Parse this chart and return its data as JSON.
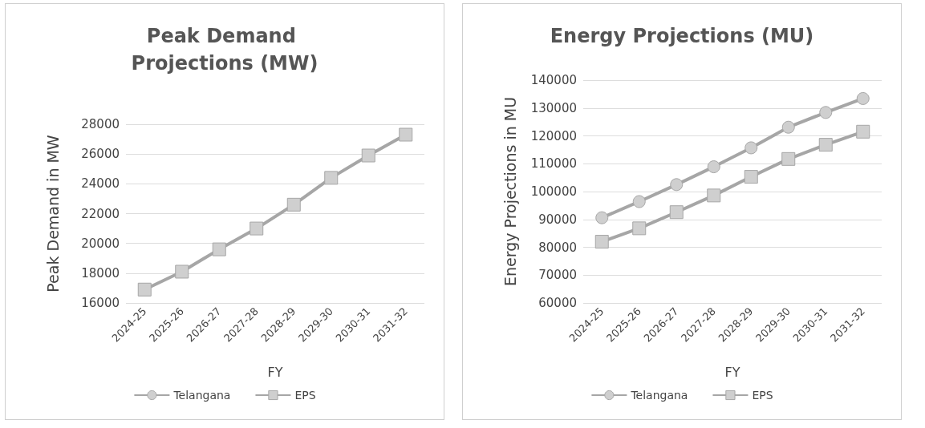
{
  "chart_data": [
    {
      "type": "line",
      "title": "Peak Demand Projections (MW)",
      "xlabel": "FY",
      "ylabel": "Peak Demand in MW",
      "categories": [
        "2024-25",
        "2025-26",
        "2026-27",
        "2027-28",
        "2028-29",
        "2029-30",
        "2030-31",
        "2031-32"
      ],
      "series": [
        {
          "name": "Telangana",
          "color": "#a6a6a6",
          "marker": "circle",
          "values": [
            null,
            null,
            null,
            null,
            null,
            null,
            null,
            null
          ]
        },
        {
          "name": "EPS",
          "color": "#a6a6a6",
          "marker": "square",
          "values": [
            16900,
            18100,
            19600,
            21000,
            22600,
            24400,
            25900,
            27300
          ]
        }
      ],
      "ylim": [
        16000,
        28000
      ],
      "yticks": [
        16000,
        18000,
        20000,
        22000,
        24000,
        26000,
        28000
      ],
      "grid": "y",
      "legend": "bottom"
    },
    {
      "type": "line",
      "title": "Energy Projections (MU)",
      "xlabel": "FY",
      "ylabel": "Energy Projections in MU",
      "categories": [
        "2024-25",
        "2025-26",
        "2026-27",
        "2027-28",
        "2028-29",
        "2029-30",
        "2030-31",
        "2031-32"
      ],
      "series": [
        {
          "name": "Telangana",
          "color": "#a6a6a6",
          "marker": "circle",
          "values": [
            90600,
            96400,
            102500,
            108900,
            115700,
            123100,
            128400,
            133400
          ]
        },
        {
          "name": "EPS",
          "color": "#a6a6a6",
          "marker": "square",
          "values": [
            82000,
            86800,
            92600,
            98600,
            105300,
            111700,
            116800,
            121500
          ]
        }
      ],
      "ylim": [
        60000,
        140000
      ],
      "yticks": [
        60000,
        70000,
        80000,
        90000,
        100000,
        110000,
        120000,
        130000,
        140000
      ],
      "grid": "y",
      "legend": "bottom"
    }
  ]
}
